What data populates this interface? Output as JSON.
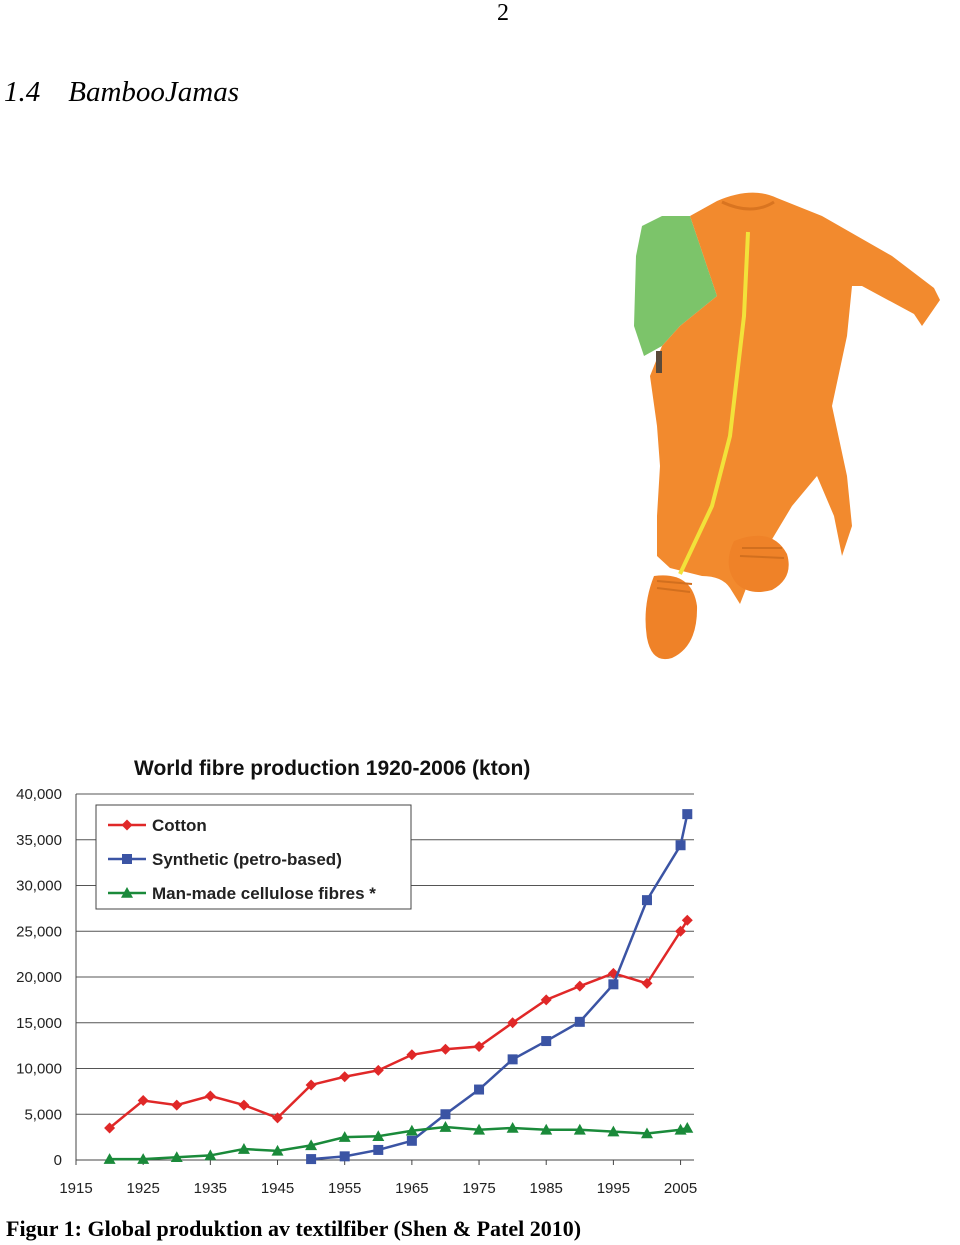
{
  "page": {
    "number": "2",
    "section_number": "1.4",
    "section_title": "BambooJamas",
    "caption": "Figur 1: Global produktion av textilfiber (Shen & Patel 2010)"
  },
  "photo": {
    "subject": "orange baby sleepsuit with green sleeve and yellow zipper",
    "colors": {
      "body": "#f28a2e",
      "sleeve": "#7cc46a",
      "zipper": "#f2e23a"
    }
  },
  "chart_data": {
    "type": "line",
    "title": "World fibre production 1920-2006  (kton)",
    "xlabel": "",
    "ylabel": "",
    "xlim": [
      1915,
      2007
    ],
    "ylim": [
      0,
      40000
    ],
    "x_ticks": [
      1915,
      1925,
      1935,
      1945,
      1955,
      1965,
      1975,
      1985,
      1995,
      2005
    ],
    "x_tick_labels": [
      "1915",
      "1925",
      "1935",
      "1945",
      "1955",
      "1965",
      "1975",
      "1985",
      "1995",
      "2005"
    ],
    "y_ticks": [
      0,
      5000,
      10000,
      15000,
      20000,
      25000,
      30000,
      35000,
      40000
    ],
    "y_tick_labels": [
      "0",
      "5,000",
      "10,000",
      "15,000",
      "20,000",
      "25,000",
      "30,000",
      "35,000",
      "40,000"
    ],
    "grid": "horizontal",
    "legend_position": "top-left",
    "series": [
      {
        "name": "Cotton",
        "color": "#e02828",
        "marker": "diamond",
        "x": [
          1920,
          1925,
          1930,
          1935,
          1940,
          1945,
          1950,
          1955,
          1960,
          1965,
          1970,
          1975,
          1980,
          1985,
          1990,
          1995,
          2000,
          2005,
          2006
        ],
        "values": [
          3500,
          6500,
          6000,
          7000,
          6000,
          4600,
          8200,
          9100,
          9800,
          11500,
          12100,
          12400,
          15000,
          17500,
          19000,
          20400,
          19300,
          25000,
          26200
        ]
      },
      {
        "name": "Synthetic (petro-based)",
        "color": "#3b54a4",
        "marker": "square",
        "x": [
          1950,
          1955,
          1960,
          1965,
          1970,
          1975,
          1980,
          1985,
          1990,
          1995,
          2000,
          2005,
          2006
        ],
        "values": [
          100,
          400,
          1100,
          2100,
          5000,
          7700,
          11000,
          13000,
          15100,
          19200,
          28400,
          34400,
          37800
        ]
      },
      {
        "name": "Man-made cellulose fibres *",
        "color": "#1a8a3a",
        "marker": "triangle",
        "x": [
          1920,
          1925,
          1930,
          1935,
          1940,
          1945,
          1950,
          1955,
          1960,
          1965,
          1970,
          1975,
          1980,
          1985,
          1990,
          1995,
          2000,
          2005,
          2006
        ],
        "values": [
          100,
          100,
          300,
          500,
          1200,
          1000,
          1600,
          2500,
          2600,
          3200,
          3600,
          3300,
          3500,
          3300,
          3300,
          3100,
          2900,
          3300,
          3500
        ]
      }
    ]
  }
}
